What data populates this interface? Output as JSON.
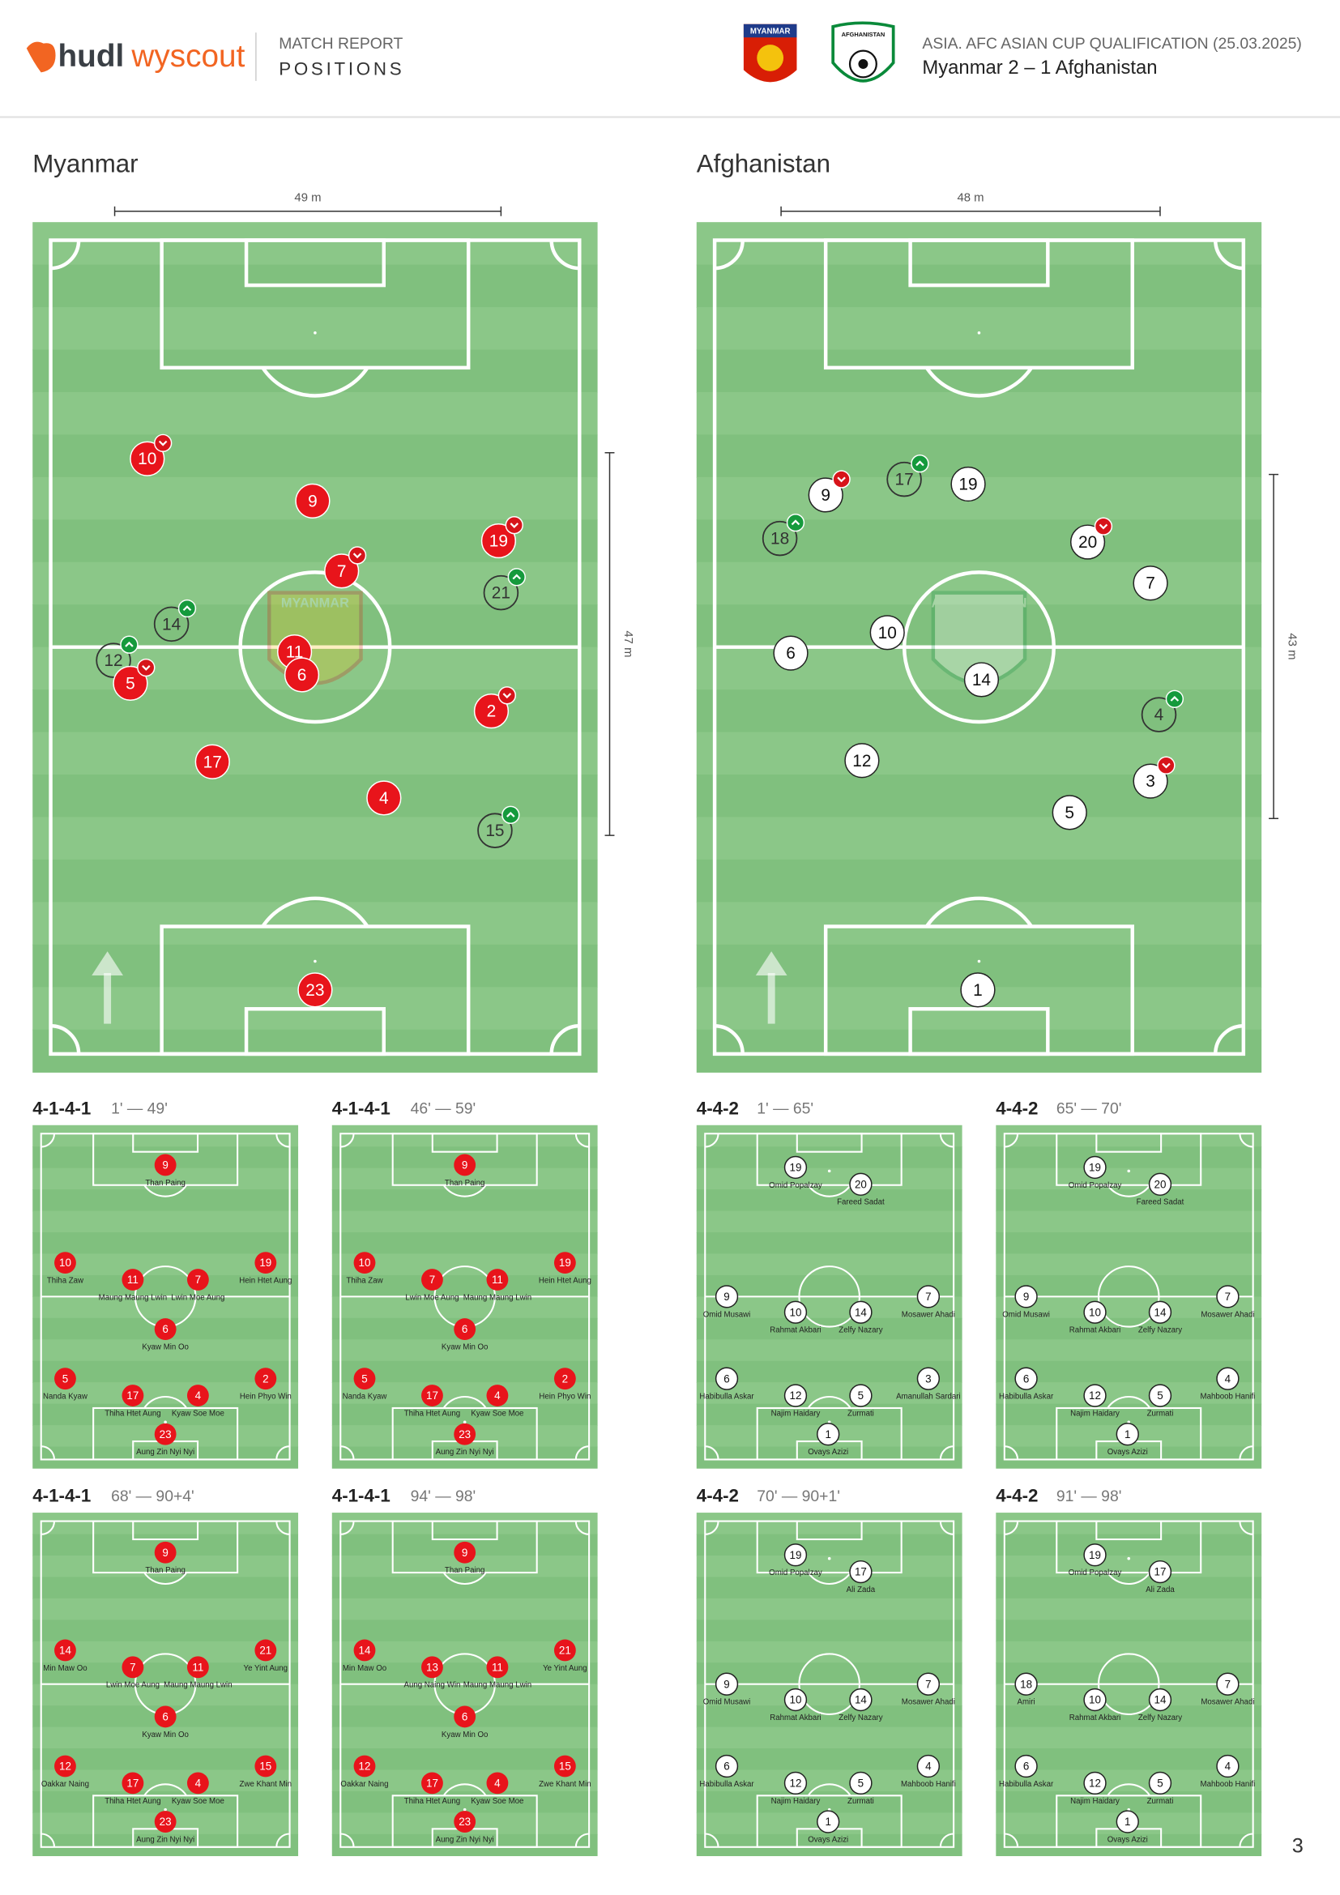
{
  "header": {
    "brand": [
      "hudl",
      "wyscout"
    ],
    "report_label": "MATCH REPORT",
    "report_title": "POSITIONS",
    "competition": "ASIA. AFC ASIAN CUP QUALIFICATION (25.03.2025)",
    "match": "Myanmar 2 – 1 Afghanistan",
    "page": "3"
  },
  "teams": [
    {
      "name": "Myanmar",
      "badge": "MYANMAR",
      "color": "#e8141b",
      "width_label": "49 m",
      "depth_label": "47 m",
      "players": [
        {
          "number": 10,
          "sub": "out"
        },
        {
          "number": 9
        },
        {
          "number": 19,
          "sub": "out"
        },
        {
          "number": 7,
          "sub": "out"
        },
        {
          "number": 21,
          "sub": "in"
        },
        {
          "number": 14,
          "sub": "in"
        },
        {
          "number": 12,
          "sub": "in"
        },
        {
          "number": 5,
          "sub": "out"
        },
        {
          "number": 11
        },
        {
          "number": 6
        },
        {
          "number": 2,
          "sub": "out"
        },
        {
          "number": 17
        },
        {
          "number": 4
        },
        {
          "number": 15,
          "sub": "in"
        },
        {
          "number": 23
        }
      ],
      "formations": [
        {
          "formation": "4-1-4-1",
          "period": "1' — 49'",
          "players": [
            {
              "number": 9,
              "name": "Than Paing"
            },
            {
              "number": 10,
              "name": "Thiha Zaw"
            },
            {
              "number": 11,
              "name": "Maung Maung Lwin"
            },
            {
              "number": 7,
              "name": "Lwin Moe Aung"
            },
            {
              "number": 19,
              "name": "Hein Htet Aung"
            },
            {
              "number": 6,
              "name": "Kyaw Min Oo"
            },
            {
              "number": 5,
              "name": "Nanda Kyaw"
            },
            {
              "number": 17,
              "name": "Thiha Htet Aung"
            },
            {
              "number": 4,
              "name": "Kyaw Soe Moe"
            },
            {
              "number": 2,
              "name": "Hein Phyo Win"
            },
            {
              "number": 23,
              "name": "Aung Zin Nyi Nyi"
            }
          ]
        },
        {
          "formation": "4-1-4-1",
          "period": "46' — 59'",
          "players": [
            {
              "number": 9,
              "name": "Than Paing"
            },
            {
              "number": 10,
              "name": "Thiha Zaw"
            },
            {
              "number": 7,
              "name": "Lwin Moe Aung"
            },
            {
              "number": 11,
              "name": "Maung Maung Lwin"
            },
            {
              "number": 19,
              "name": "Hein Htet Aung"
            },
            {
              "number": 6,
              "name": "Kyaw Min Oo"
            },
            {
              "number": 5,
              "name": "Nanda Kyaw"
            },
            {
              "number": 17,
              "name": "Thiha Htet Aung"
            },
            {
              "number": 4,
              "name": "Kyaw Soe Moe"
            },
            {
              "number": 2,
              "name": "Hein Phyo Win"
            },
            {
              "number": 23,
              "name": "Aung Zin Nyi Nyi"
            }
          ]
        },
        {
          "formation": "4-1-4-1",
          "period": "68' — 90+4'",
          "players": [
            {
              "number": 9,
              "name": "Than Paing"
            },
            {
              "number": 14,
              "name": "Min Maw Oo"
            },
            {
              "number": 7,
              "name": "Lwin Moe Aung"
            },
            {
              "number": 11,
              "name": "Maung Maung Lwin"
            },
            {
              "number": 21,
              "name": "Ye Yint Aung"
            },
            {
              "number": 6,
              "name": "Kyaw Min Oo"
            },
            {
              "number": 12,
              "name": "Oakkar Naing"
            },
            {
              "number": 17,
              "name": "Thiha Htet Aung"
            },
            {
              "number": 4,
              "name": "Kyaw Soe Moe"
            },
            {
              "number": 15,
              "name": "Zwe Khant Min"
            },
            {
              "number": 23,
              "name": "Aung Zin Nyi Nyi"
            }
          ]
        },
        {
          "formation": "4-1-4-1",
          "period": "94' — 98'",
          "players": [
            {
              "number": 9,
              "name": "Than Paing"
            },
            {
              "number": 14,
              "name": "Min Maw Oo"
            },
            {
              "number": 13,
              "name": "Aung Naing Win"
            },
            {
              "number": 11,
              "name": "Maung Maung Lwin"
            },
            {
              "number": 21,
              "name": "Ye Yint Aung"
            },
            {
              "number": 6,
              "name": "Kyaw Min Oo"
            },
            {
              "number": 12,
              "name": "Oakkar Naing"
            },
            {
              "number": 17,
              "name": "Thiha Htet Aung"
            },
            {
              "number": 4,
              "name": "Kyaw Soe Moe"
            },
            {
              "number": 15,
              "name": "Zwe Khant Min"
            },
            {
              "number": 23,
              "name": "Aung Zin Nyi Nyi"
            }
          ]
        }
      ]
    },
    {
      "name": "Afghanistan",
      "badge": "AFGHANISTAN",
      "color": "#ffffff",
      "width_label": "48 m",
      "depth_label": "43 m",
      "players": [
        {
          "number": 9,
          "sub": "out"
        },
        {
          "number": 17,
          "sub": "in"
        },
        {
          "number": 19
        },
        {
          "number": 18,
          "sub": "in"
        },
        {
          "number": 20,
          "sub": "out"
        },
        {
          "number": 7
        },
        {
          "number": 10
        },
        {
          "number": 6
        },
        {
          "number": 14
        },
        {
          "number": 4,
          "sub": "in"
        },
        {
          "number": 12
        },
        {
          "number": 3,
          "sub": "out"
        },
        {
          "number": 5
        },
        {
          "number": 1
        }
      ],
      "formations": [
        {
          "formation": "4-4-2",
          "period": "1' — 65'",
          "players": [
            {
              "number": 19,
              "name": "Omid Popalzay"
            },
            {
              "number": 20,
              "name": "Fareed Sadat"
            },
            {
              "number": 9,
              "name": "Omid Musawi"
            },
            {
              "number": 10,
              "name": "Rahmat Akbari"
            },
            {
              "number": 14,
              "name": "Zelfy Nazary"
            },
            {
              "number": 7,
              "name": "Mosawer Ahadi"
            },
            {
              "number": 6,
              "name": "Habibulla Askar"
            },
            {
              "number": 12,
              "name": "Najim Haidary"
            },
            {
              "number": 5,
              "name": "Zurmati"
            },
            {
              "number": 3,
              "name": "Amanullah Sardari"
            },
            {
              "number": 1,
              "name": "Ovays Azizi"
            }
          ]
        },
        {
          "formation": "4-4-2",
          "period": "65' — 70'",
          "players": [
            {
              "number": 19,
              "name": "Omid Popalzay"
            },
            {
              "number": 20,
              "name": "Fareed Sadat"
            },
            {
              "number": 9,
              "name": "Omid Musawi"
            },
            {
              "number": 10,
              "name": "Rahmat Akbari"
            },
            {
              "number": 14,
              "name": "Zelfy Nazary"
            },
            {
              "number": 7,
              "name": "Mosawer Ahadi"
            },
            {
              "number": 6,
              "name": "Habibulla Askar"
            },
            {
              "number": 12,
              "name": "Najim Haidary"
            },
            {
              "number": 5,
              "name": "Zurmati"
            },
            {
              "number": 4,
              "name": "Mahboob Hanifi"
            },
            {
              "number": 1,
              "name": "Ovays Azizi"
            }
          ]
        },
        {
          "formation": "4-4-2",
          "period": "70' — 90+1'",
          "players": [
            {
              "number": 19,
              "name": "Omid Popalzay"
            },
            {
              "number": 17,
              "name": "Ali Zada"
            },
            {
              "number": 9,
              "name": "Omid Musawi"
            },
            {
              "number": 10,
              "name": "Rahmat Akbari"
            },
            {
              "number": 14,
              "name": "Zelfy Nazary"
            },
            {
              "number": 7,
              "name": "Mosawer Ahadi"
            },
            {
              "number": 6,
              "name": "Habibulla Askar"
            },
            {
              "number": 12,
              "name": "Najim Haidary"
            },
            {
              "number": 5,
              "name": "Zurmati"
            },
            {
              "number": 4,
              "name": "Mahboob Hanifi"
            },
            {
              "number": 1,
              "name": "Ovays Azizi"
            }
          ]
        },
        {
          "formation": "4-4-2",
          "period": "91' — 98'",
          "players": [
            {
              "number": 19,
              "name": "Omid Popalzay"
            },
            {
              "number": 17,
              "name": "Ali Zada"
            },
            {
              "number": 18,
              "name": "Amiri"
            },
            {
              "number": 10,
              "name": "Rahmat Akbari"
            },
            {
              "number": 14,
              "name": "Zelfy Nazary"
            },
            {
              "number": 7,
              "name": "Mosawer Ahadi"
            },
            {
              "number": 6,
              "name": "Habibulla Askar"
            },
            {
              "number": 12,
              "name": "Najim Haidary"
            },
            {
              "number": 5,
              "name": "Zurmati"
            },
            {
              "number": 4,
              "name": "Mahboob Hanifi"
            },
            {
              "number": 1,
              "name": "Ovays Azizi"
            }
          ]
        }
      ]
    }
  ]
}
